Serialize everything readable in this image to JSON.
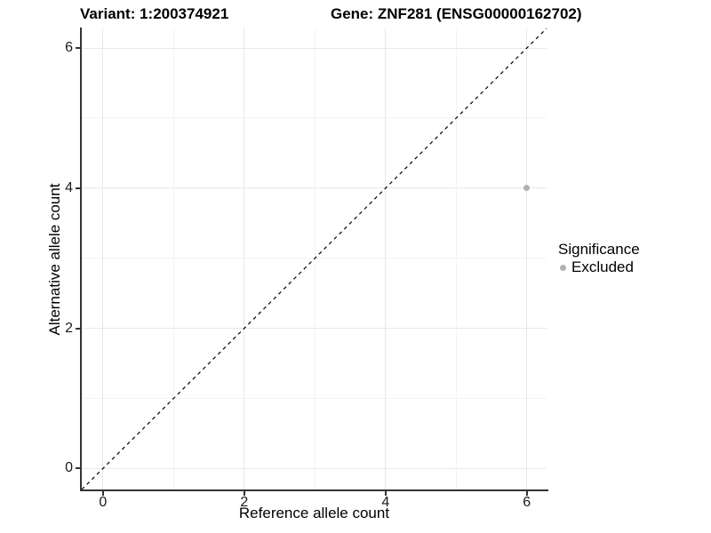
{
  "chart_data": {
    "type": "scatter",
    "titles": {
      "left": "Variant: 1:200374921",
      "right": "Gene: ZNF281 (ENSG00000162702)"
    },
    "xlabel": "Reference allele count",
    "ylabel": "Alternative allele count",
    "xlim": [
      -0.3,
      6.28
    ],
    "ylim": [
      -0.3,
      6.28
    ],
    "x_ticks": [
      0,
      2,
      4,
      6
    ],
    "y_ticks": [
      0,
      2,
      4,
      6
    ],
    "x_minor_gridlines": [
      1,
      3,
      5
    ],
    "y_minor_gridlines": [
      1,
      3,
      5
    ],
    "grid": "on",
    "reference_line": {
      "kind": "y=x",
      "slope": 1,
      "intercept": 0,
      "style": "dashed",
      "color": "#000000"
    },
    "series": [
      {
        "name": "Excluded",
        "color": "#b0b0b0",
        "points": [
          [
            6,
            4
          ]
        ]
      }
    ],
    "legend": {
      "title": "Significance",
      "position": "right-middle",
      "entries": [
        {
          "label": "Excluded",
          "color": "#b0b0b0"
        }
      ]
    },
    "colors": {
      "background": "#ffffff",
      "grid_major": "#e8e8e8",
      "grid_minor": "#f3f3f3",
      "axis": "#333333",
      "tick_label": "#1a1a1a"
    }
  }
}
